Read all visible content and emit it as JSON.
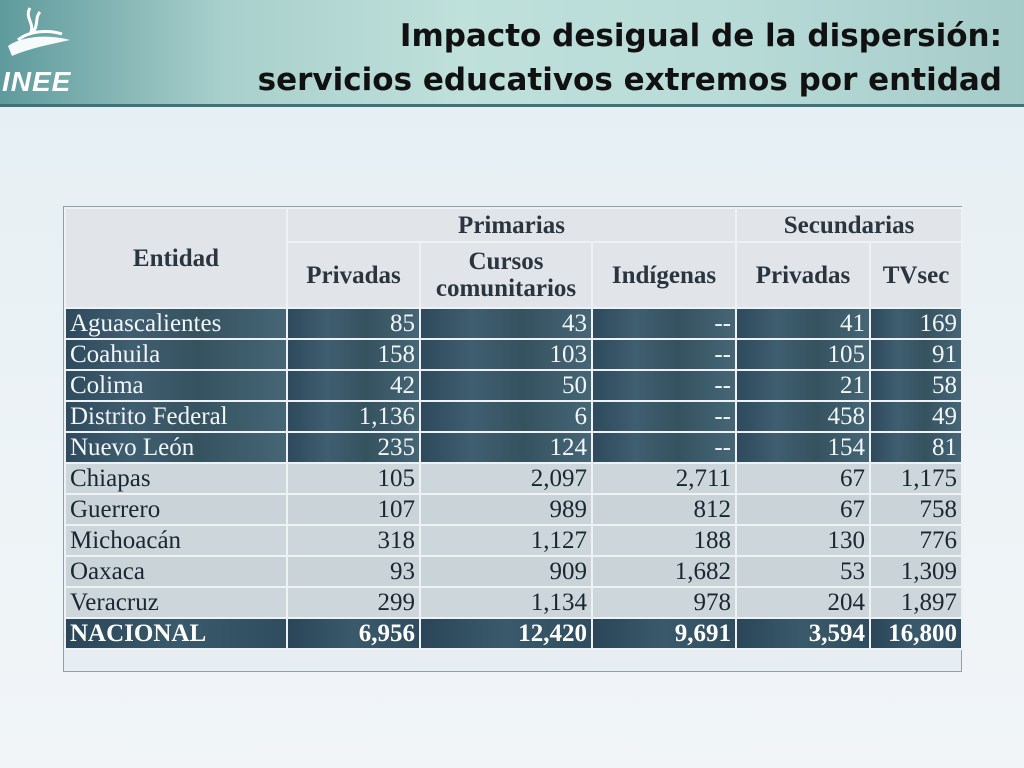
{
  "logo": {
    "text": "INEE"
  },
  "title": {
    "line1": "Impacto desigual de la dispersión:",
    "line2": "servicios educativos extremos por entidad"
  },
  "table": {
    "entity_header": "Entidad",
    "groups": [
      "Primarias",
      "Secundarias"
    ],
    "columns": [
      "Privadas",
      "Cursos comunitarios",
      "Indígenas",
      "Privadas",
      "TVsec"
    ],
    "rows": [
      {
        "entidad": "Aguascalientes",
        "values": [
          "85",
          "43",
          "--",
          "41",
          "169"
        ],
        "style": "dark"
      },
      {
        "entidad": "Coahuila",
        "values": [
          "158",
          "103",
          "--",
          "105",
          "91"
        ],
        "style": "dark"
      },
      {
        "entidad": "Colima",
        "values": [
          "42",
          "50",
          "--",
          "21",
          "58"
        ],
        "style": "dark"
      },
      {
        "entidad": "Distrito Federal",
        "values": [
          "1,136",
          "6",
          "--",
          "458",
          "49"
        ],
        "style": "dark"
      },
      {
        "entidad": "Nuevo León",
        "values": [
          "235",
          "124",
          "--",
          "154",
          "81"
        ],
        "style": "dark"
      },
      {
        "entidad": "Chiapas",
        "values": [
          "105",
          "2,097",
          "2,711",
          "67",
          "1,175"
        ],
        "style": "light"
      },
      {
        "entidad": "Guerrero",
        "values": [
          "107",
          "989",
          "812",
          "67",
          "758"
        ],
        "style": "light"
      },
      {
        "entidad": "Michoacán",
        "values": [
          "318",
          "1,127",
          "188",
          "130",
          "776"
        ],
        "style": "light"
      },
      {
        "entidad": "Oaxaca",
        "values": [
          "93",
          "909",
          "1,682",
          "53",
          "1,309"
        ],
        "style": "light"
      },
      {
        "entidad": "Veracruz",
        "values": [
          "299",
          "1,134",
          "978",
          "204",
          "1,897"
        ],
        "style": "light"
      }
    ],
    "total": {
      "entidad": "NACIONAL",
      "values": [
        "6,956",
        "12,420",
        "9,691",
        "3,594",
        "16,800"
      ]
    }
  }
}
